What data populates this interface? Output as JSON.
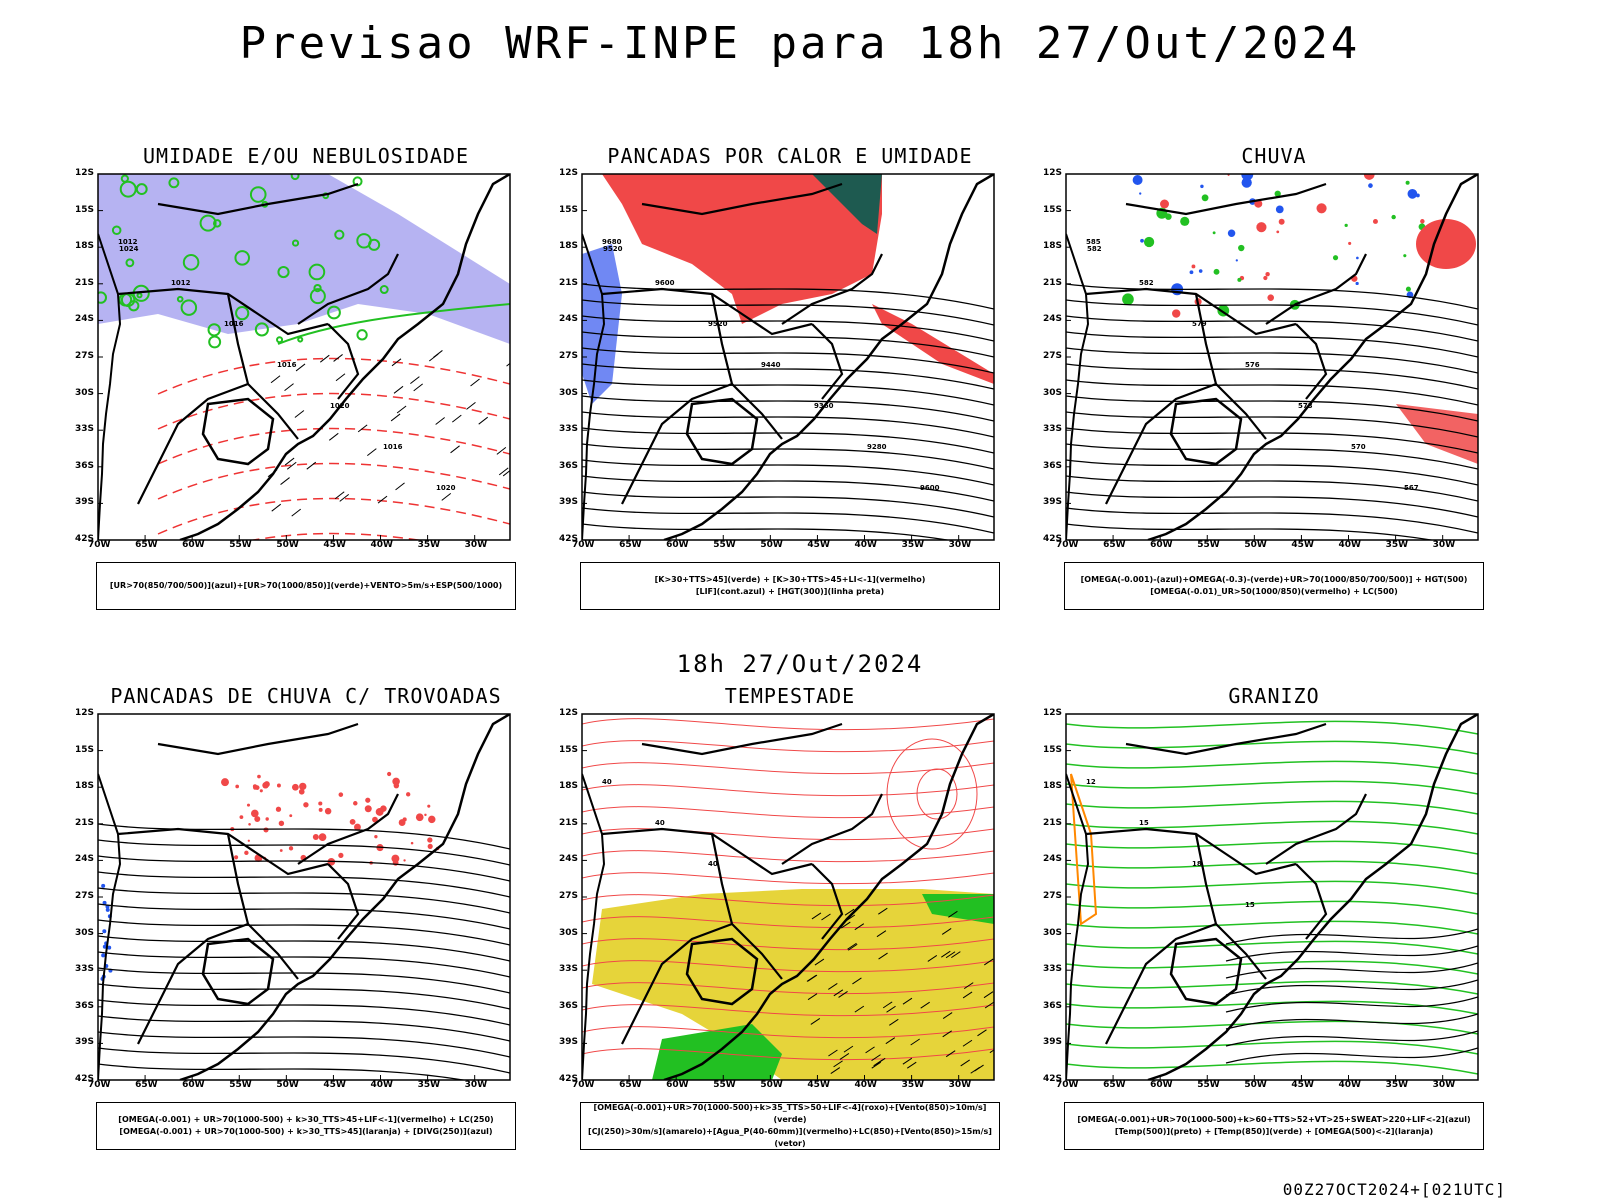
{
  "header": {
    "title": "Previsao WRF-INPE  para 18h 27/Out/2024"
  },
  "mid_title": "18h 27/Out/2024",
  "footer": "00Z27OCT2024+[021UTC]",
  "axes": {
    "lat_labels": [
      "12S",
      "15S",
      "18S",
      "21S",
      "24S",
      "27S",
      "30S",
      "33S",
      "36S",
      "39S",
      "42S"
    ],
    "lon_labels": [
      "70W",
      "65W",
      "60W",
      "55W",
      "50W",
      "45W",
      "40W",
      "35W",
      "30W"
    ]
  },
  "panels": [
    {
      "title": "UMIDADE E/OU NEBULOSIDADE",
      "legend": [
        "[UR>70(850/700/500)](azul)+[UR>70(1000/850)](verde)+VENTO>5m/s+ESP(500/1000)"
      ],
      "contour_labels": [
        "1012",
        "1012",
        "1016",
        "1016",
        "1020",
        "1016",
        "1020",
        "1024"
      ],
      "colors": {
        "primary": "#a9a6f0",
        "secondary": "#22c022",
        "contour": "#ee3333"
      }
    },
    {
      "title": "PANCADAS POR CALOR E UMIDADE",
      "legend": [
        "[K>30+TTS>45](verde) + [K>30+TTS>45+LI<-1](vermelho)",
        "[LIF](cont.azul) + [HGT(300)](linha preta)"
      ],
      "contour_labels": [
        "9680",
        "9600",
        "9520",
        "9440",
        "9360",
        "9280",
        "9600",
        "9520"
      ],
      "colors": {
        "primary": "#f04848",
        "secondary": "#1e5a50",
        "contour": "#3355ee"
      }
    },
    {
      "title": "CHUVA",
      "legend": [
        "[OMEGA(-0.001)-(azul)+OMEGA(-0.3)-(verde)+UR>70(1000/850/700/500)] + HGT(500)",
        "[OMEGA(-0.01)_UR>50(1000/850)(vermelho) + LC(500)"
      ],
      "contour_labels": [
        "585",
        "582",
        "579",
        "576",
        "573",
        "570",
        "567",
        "582"
      ],
      "colors": {
        "primary": "#f04848",
        "secondary": "#2255ee",
        "contour": "#22c022"
      }
    },
    {
      "title": "PANCADAS DE CHUVA C/ TROVOADAS",
      "legend": [
        "[OMEGA(-0.001) + UR>70(1000-500) + k>30_TTS>45+LIF<-1](vermelho) + LC(250)",
        "[OMEGA(-0.001) + UR>70(1000-500) + k>30_TTS>45](laranja) + [DIVG(250)](azul)"
      ],
      "contour_labels": [],
      "colors": {
        "primary": "#f04848",
        "secondary": "#2255ee",
        "contour": "#ff8800"
      }
    },
    {
      "title": "TEMPESTADE",
      "legend": [
        "[OMEGA(-0.001)+UR>70(1000-500)+k>35_TTS>50+LIF<-4](roxo)+[Vento(850)>10m/s](verde)",
        "[CJ(250)>30m/s](amarelo)+[Agua_P(40-60mm)](vermelho)+LC(850)+[Vento(850)>15m/s](vetor)"
      ],
      "contour_labels": [
        "40",
        "40",
        "40"
      ],
      "colors": {
        "primary": "#e6d43a",
        "secondary": "#22c022",
        "contour": "#f04848"
      }
    },
    {
      "title": "GRANIZO",
      "legend": [
        "[OMEGA(-0.001)+UR>70(1000-500)+k>60+TTS>52+VT>25+SWEAT>220+LIF<-2](azul)",
        "[Temp(500)](preto) + [Temp(850)](verde) + [OMEGA(500)<-2](laranja)"
      ],
      "contour_labels": [
        "12",
        "15",
        "18",
        "15"
      ],
      "colors": {
        "primary": "#22c022",
        "secondary": "#ff8800",
        "contour": "#000000"
      }
    }
  ]
}
